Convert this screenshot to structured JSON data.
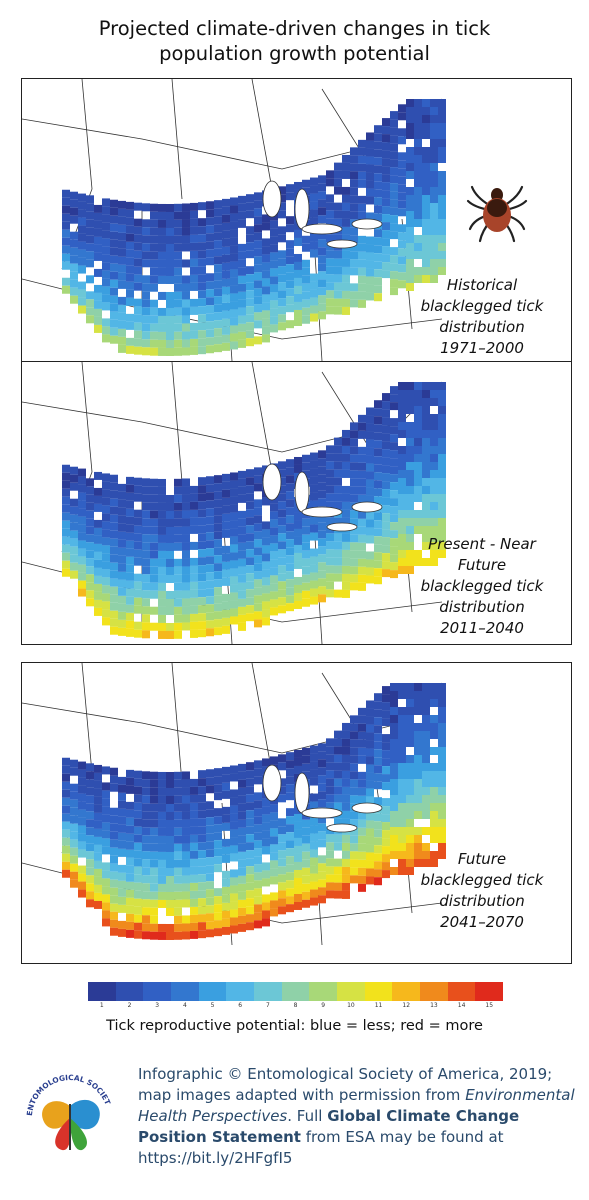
{
  "title": {
    "line1": "Projected climate-driven changes in tick",
    "line2": "population growth potential"
  },
  "panels": [
    {
      "line1": "Historical",
      "line2": "blacklegged tick",
      "line3": "distribution",
      "line4": "1971–2000",
      "intensity": 0.55
    },
    {
      "line1": "Present - Near",
      "line2": "Future",
      "line3": "blacklegged tick",
      "line4": "distribution",
      "line5": "2011–2040",
      "intensity": 0.72
    },
    {
      "line1": "Future",
      "line2": "blacklegged tick",
      "line3": "distribution",
      "line4": "2041–2070",
      "intensity": 0.92
    }
  ],
  "legend": {
    "colors": [
      "#2b3b96",
      "#2f4fb0",
      "#3160c4",
      "#3377cf",
      "#3a9fe0",
      "#52b6e6",
      "#6cc7d6",
      "#8fd1a8",
      "#a8d878",
      "#d6e244",
      "#f2e21c",
      "#f6b81c",
      "#f08a1c",
      "#e8501c",
      "#e02a1c"
    ],
    "ticks": [
      "1",
      "2",
      "3",
      "4",
      "5",
      "6",
      "7",
      "8",
      "9",
      "10",
      "11",
      "12",
      "13",
      "14",
      "15"
    ],
    "caption": "Tick reproductive potential: blue = less; red = more"
  },
  "credit": {
    "part1": "Infographic © Entomological Society of America, 2019; map images adapted with permission from ",
    "journal": "Environmental Health Perspectives",
    "part2": ". Full ",
    "bold": "Global Climate Change Position Statement",
    "part3": " from ESA may be found at https://bit.ly/2HFgfI5"
  },
  "logo": {
    "text": "ENTOMOLOGICAL SOCIETY OF AMERICA"
  }
}
